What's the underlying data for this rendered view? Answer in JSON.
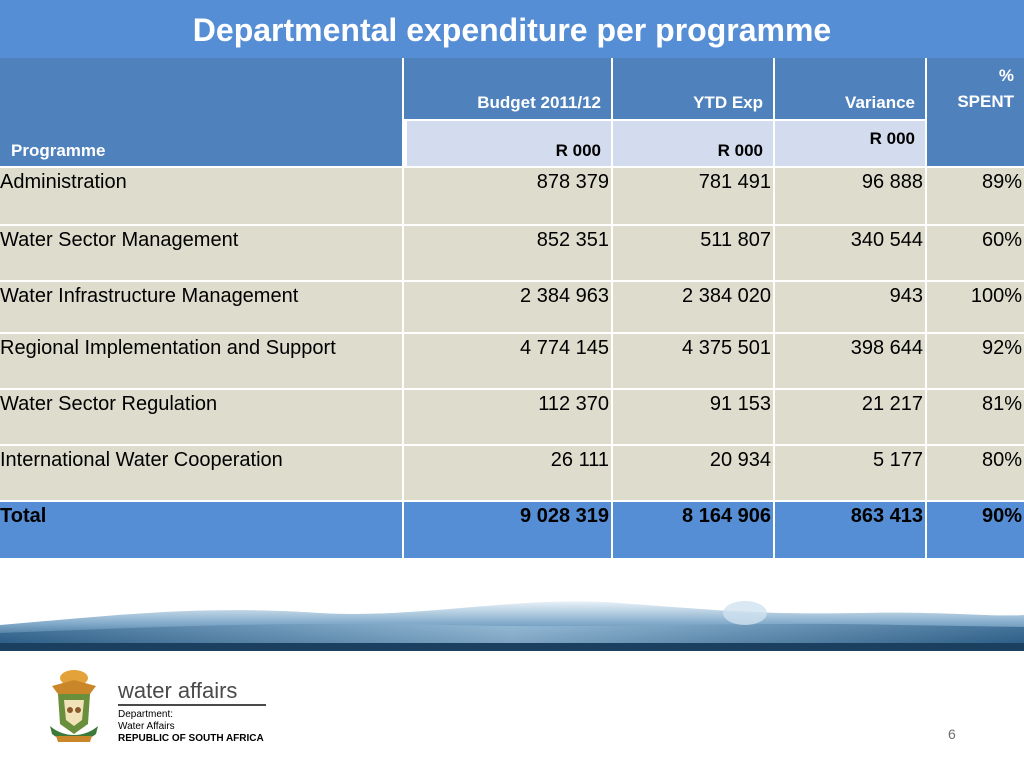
{
  "title": "Departmental expenditure per programme",
  "table": {
    "headers": {
      "programme": "Programme",
      "budget": "Budget 2011/12",
      "ytd": "YTD Exp",
      "variance": "Variance",
      "pct_line1": "%",
      "pct_line2": "SPENT",
      "unit_budget": "R 000",
      "unit_ytd": "R 000",
      "unit_variance": "R 000"
    },
    "rows": [
      {
        "programme": "Administration",
        "budget": "878 379",
        "ytd": "781 491",
        "variance": "96 888",
        "pct": "89%"
      },
      {
        "programme": "Water Sector Management",
        "budget": "852 351",
        "ytd": "511 807",
        "variance": "340 544",
        "pct": "60%"
      },
      {
        "programme": "Water Infrastructure Management",
        "budget": "2 384 963",
        "ytd": "2 384 020",
        "variance": "943",
        "pct": "100%"
      },
      {
        "programme": "Regional Implementation and Support",
        "budget": "4 774 145",
        "ytd": "4 375 501",
        "variance": "398 644",
        "pct": "92%"
      },
      {
        "programme": "Water Sector Regulation",
        "budget": "112 370",
        "ytd": "91 153",
        "variance": "21 217",
        "pct": "81%"
      },
      {
        "programme": "International Water Cooperation",
        "budget": "26 111",
        "ytd": "20 934",
        "variance": "5 177",
        "pct": "80%"
      }
    ],
    "total": {
      "programme": "Total",
      "budget": "9 028 319",
      "ytd": "8 164 906",
      "variance": "863 413",
      "pct": "90%"
    }
  },
  "footer": {
    "brand": "water affairs",
    "dept_line1": "Department:",
    "dept_line2": "Water Affairs",
    "dept_line3": "REPUBLIC OF SOUTH AFRICA",
    "page_number": "6"
  },
  "colors": {
    "title_bar": "#558ed5",
    "header": "#4f81bd",
    "subheader": "#d3dcee",
    "row": "#dddccd",
    "total": "#558ed5"
  }
}
